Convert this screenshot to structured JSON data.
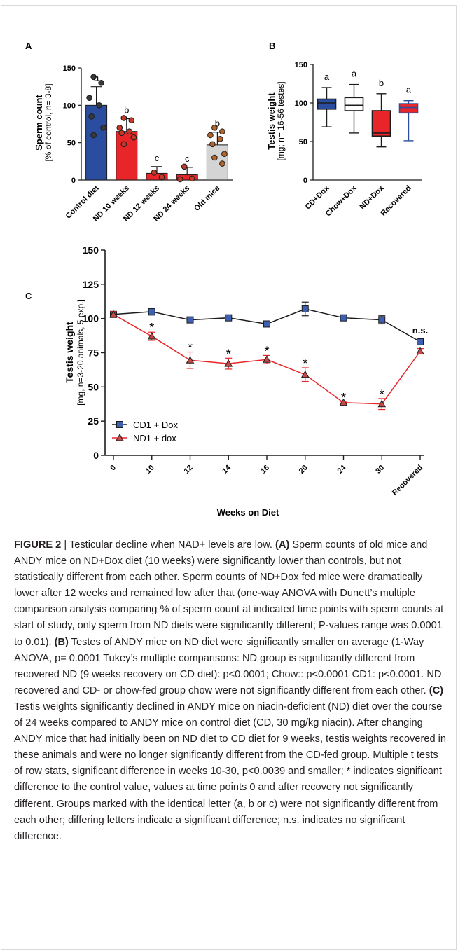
{
  "figure": {
    "panelA": {
      "letter": "A",
      "ylabel": "Sperm count",
      "ylabel_sub": "[% of control, n= 3-8]"
    },
    "panelB": {
      "letter": "B",
      "ylabel": "Testis weight",
      "ylabel_sub": "[mg; n= 16-56 testes]"
    },
    "panelC": {
      "letter": "C",
      "ylabel": "Testis weight",
      "ylabel_sub": "[mg, n=3-20 animals, 5 exp.]",
      "xlabel": "Weeks on Diet"
    }
  },
  "chart_data": [
    {
      "panel": "A",
      "type": "bar",
      "categories": [
        "Control diet",
        "ND 10 weeks",
        "ND 12 weeks",
        "ND 24 weeks",
        "Old mice"
      ],
      "values": [
        100,
        65,
        9,
        7,
        47
      ],
      "errors": [
        25,
        17,
        9,
        10,
        17
      ],
      "letters": [
        "a",
        "b",
        "c",
        "c",
        "b"
      ],
      "colors": [
        "#2b4da0",
        "#e8262a",
        "#e8262a",
        "#e8262a",
        "#d4d4d4"
      ],
      "points": [
        [
          138,
          130,
          110,
          100,
          85,
          70,
          60
        ],
        [
          83,
          80,
          70,
          65,
          63,
          57,
          48
        ],
        [
          10,
          4
        ],
        [
          18,
          2,
          1
        ],
        [
          70,
          65,
          60,
          55,
          48,
          35,
          30,
          22
        ]
      ],
      "point_colors": [
        "#3a3a3a",
        "#c0392b",
        "#c0392b",
        "#c0392b",
        "#b5652b"
      ],
      "ylim": [
        0,
        150
      ],
      "yticks": [
        0,
        50,
        100,
        150
      ]
    },
    {
      "panel": "B",
      "type": "box",
      "categories": [
        "CD+Dox",
        "Chow+Dox",
        "ND+Dox",
        "Recovered"
      ],
      "boxes": [
        {
          "min": 69,
          "q1": 92,
          "median": 100,
          "q3": 105,
          "max": 120
        },
        {
          "min": 61,
          "q1": 90,
          "median": 97,
          "q3": 107,
          "max": 124
        },
        {
          "min": 43,
          "q1": 57,
          "median": 61,
          "q3": 90,
          "max": 112
        },
        {
          "min": 51,
          "q1": 87,
          "median": 94,
          "q3": 99,
          "max": 103
        }
      ],
      "letters": [
        "a",
        "a",
        "b",
        "a"
      ],
      "fills": [
        "#2b4da0",
        "#ffffff",
        "#e8262a",
        "#e8262a"
      ],
      "strokes": [
        "#1c1c1c",
        "#1c1c1c",
        "#1c1c1c",
        "#2b4da0"
      ],
      "ylim": [
        0,
        150
      ],
      "yticks": [
        0,
        50,
        100,
        150
      ]
    },
    {
      "panel": "C",
      "type": "line",
      "categories": [
        "0",
        "10",
        "12",
        "14",
        "16",
        "20",
        "24",
        "30",
        "Recovered"
      ],
      "series": [
        {
          "name": "CD1 + Dox",
          "color": "#1c1c1c",
          "marker_color": "#3f5fb0",
          "values": [
            103,
            105,
            99,
            100.5,
            96,
            107,
            100.5,
            99,
            83
          ],
          "errors": [
            2,
            2.5,
            2,
            1.5,
            1.5,
            5,
            1.5,
            3,
            2
          ]
        },
        {
          "name": "ND1 + dox",
          "color": "#e8262a",
          "marker_color": "#c44a4a",
          "values": [
            103,
            87,
            69.5,
            67,
            70,
            59,
            38.5,
            37.5,
            76
          ],
          "errors": [
            2,
            3,
            6,
            4,
            3,
            5,
            0.5,
            4,
            2
          ]
        }
      ],
      "annotations": [
        "",
        "*",
        "*",
        "*",
        "*",
        "*",
        "*",
        "*",
        "n.s."
      ],
      "ylim": [
        0,
        150
      ],
      "yticks": [
        0,
        25,
        50,
        75,
        100,
        125,
        150
      ]
    }
  ],
  "caption": {
    "fig_label": "FIGURE 2",
    "sep": " | ",
    "title": "Testicular decline when NAD+ levels are low. ",
    "a_ref": "(A)",
    "a_text": " Sperm counts of old mice and ANDY mice on ND+Dox diet (10 weeks) were significantly lower than controls, but not statistically different from each other. Sperm counts of ND+Dox fed mice were dramatically lower after 12 weeks and remained low after that (one-way ANOVA with Dunett’s multiple comparison analysis comparing % of sperm count at indicated time points with sperm counts at start of study, only sperm from ND diets were significantly different; P-values range was 0.0001 to 0.01). ",
    "b_ref": "(B)",
    "b_text": " Testes of ANDY mice on ND diet were significantly smaller on average (1-Way ANOVA, p= 0.0001 Tukey’s multiple comparisons: ND group is significantly different from recovered ND (9 weeks recovery on CD diet): p<0.0001; Chow:: p<0.0001 CD1: p<0.0001. ND recovered and CD- or chow-fed group chow were not significantly different from each other. ",
    "c_ref": "(C)",
    "c_text": " Testis weights significantly declined in ANDY mice on niacin-deficient (ND) diet over the course of 24 weeks compared to ANDY mice on control diet (CD, 30 mg/kg niacin). After changing ANDY mice that had initially been on ND diet to CD diet for 9 weeks, testis weights recovered in these animals and were no longer significantly different from the CD-fed group. Multiple t tests of row stats, significant difference in weeks 10-30, p<0.0039 and smaller; * indicates significant difference to the control value, values at time points 0 and after recovery not significantly different. Groups marked with the identical letter (a, b or c) were not significantly different from each other; differing letters indicate a significant difference; n.s. indicates no significant difference."
  }
}
